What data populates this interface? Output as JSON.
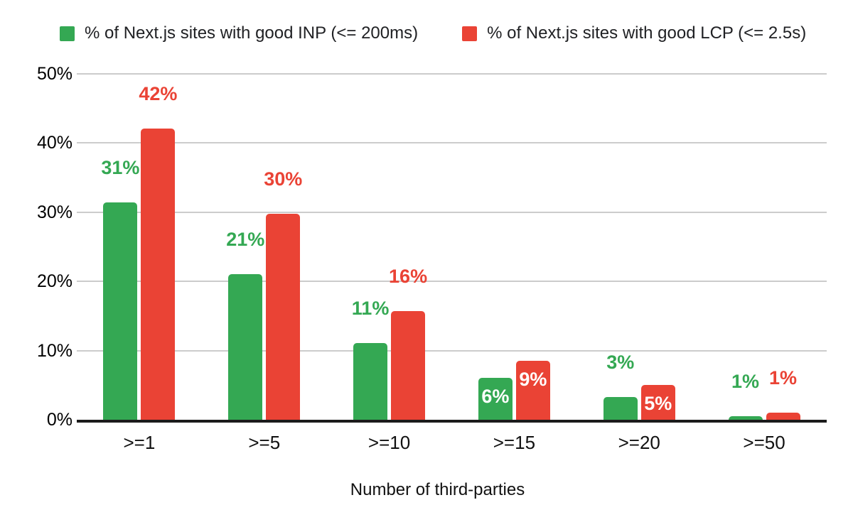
{
  "legend": {
    "items": [
      {
        "label": "% of Next.js sites with good INP (<= 200ms)",
        "color": "#34a853"
      },
      {
        "label": "% of Next.js sites with good LCP (<= 2.5s)",
        "color": "#ea4335"
      }
    ]
  },
  "chart_data": {
    "type": "bar",
    "categories": [
      ">=1",
      ">=5",
      ">=10",
      ">=15",
      ">=20",
      ">=50"
    ],
    "series": [
      {
        "name": "% of Next.js sites with good INP (<= 200ms)",
        "color": "#34a853",
        "values": [
          31.4,
          21.1,
          11.1,
          6.1,
          3.3,
          0.5
        ],
        "labels": [
          "31%",
          "21%",
          "11%",
          "6%",
          "3%",
          "1%"
        ],
        "label_placement": [
          "above",
          "above",
          "above",
          "inside",
          "above",
          "above"
        ]
      },
      {
        "name": "% of Next.js sites with good LCP (<= 2.5s)",
        "color": "#ea4335",
        "values": [
          42.1,
          29.8,
          15.7,
          8.5,
          5.0,
          1.0
        ],
        "labels": [
          "42%",
          "30%",
          "16%",
          "9%",
          "5%",
          "1%"
        ],
        "label_placement": [
          "above",
          "above",
          "above",
          "inside",
          "inside",
          "above"
        ]
      }
    ],
    "title": "",
    "xlabel": "Number of third-parties",
    "ylabel": "",
    "ylim": [
      0,
      50
    ],
    "yticks": [
      "0%",
      "10%",
      "20%",
      "30%",
      "40%",
      "50%"
    ],
    "grid": true,
    "legend_position": "top",
    "gridline_color": "#cccccc",
    "axis_line_color": "#1b1b1b"
  }
}
